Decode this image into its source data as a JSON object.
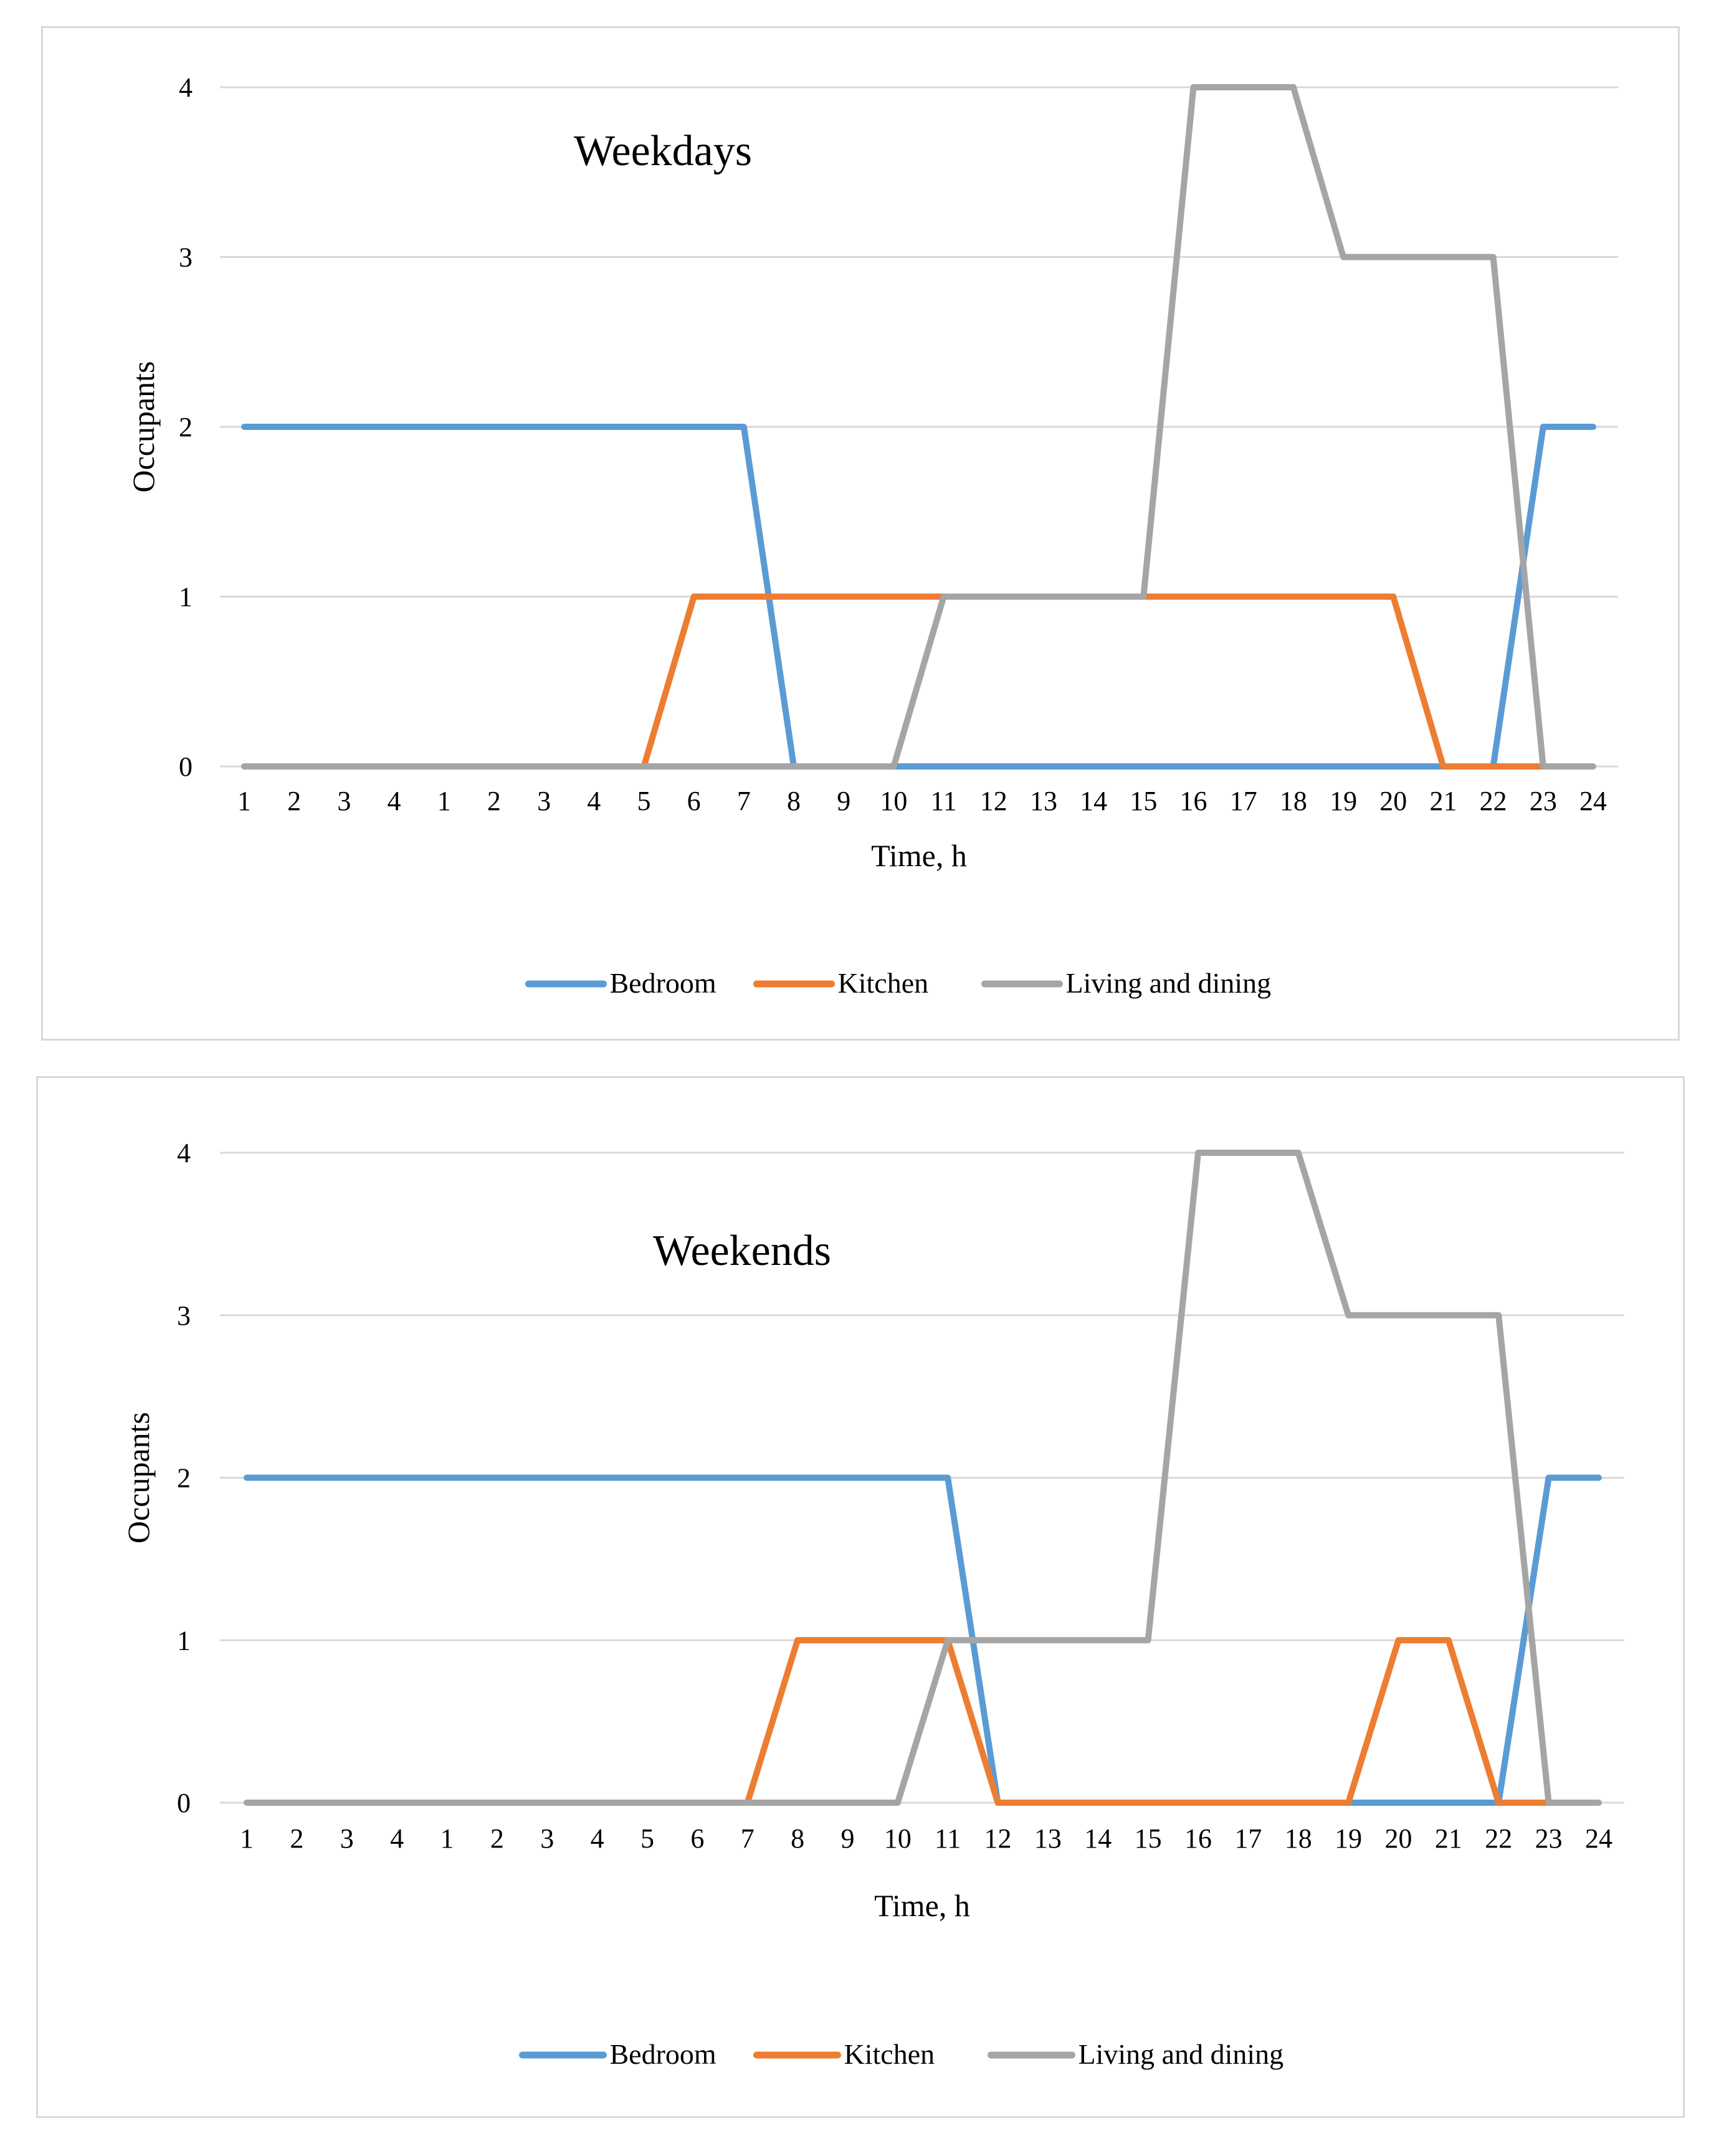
{
  "chart_data": [
    {
      "type": "line",
      "title": "Weekdays",
      "xlabel": "Time, h",
      "ylabel": "Occupants",
      "categories": [
        "1",
        "2",
        "3",
        "4",
        "1",
        "2",
        "3",
        "4",
        "5",
        "6",
        "7",
        "8",
        "9",
        "10",
        "11",
        "12",
        "13",
        "14",
        "15",
        "16",
        "17",
        "18",
        "19",
        "20",
        "21",
        "22",
        "23",
        "24"
      ],
      "ylim": [
        0,
        4
      ],
      "yticks": [
        0,
        1,
        2,
        3,
        4
      ],
      "grid": true,
      "legend": "bottom",
      "series": [
        {
          "name": "Bedroom",
          "color": "#5b9bd5",
          "values": [
            2,
            2,
            2,
            2,
            2,
            2,
            2,
            2,
            2,
            2,
            2,
            0,
            0,
            0,
            0,
            0,
            0,
            0,
            0,
            0,
            0,
            0,
            0,
            0,
            0,
            0,
            2,
            2
          ]
        },
        {
          "name": "Kitchen",
          "color": "#ed7d31",
          "values": [
            0,
            0,
            0,
            0,
            0,
            0,
            0,
            0,
            0,
            1,
            1,
            1,
            1,
            1,
            1,
            1,
            1,
            1,
            1,
            1,
            1,
            1,
            1,
            1,
            0,
            0,
            0,
            0
          ]
        },
        {
          "name": "Living and dining",
          "color": "#a5a5a5",
          "values": [
            0,
            0,
            0,
            0,
            0,
            0,
            0,
            0,
            0,
            0,
            0,
            0,
            0,
            0,
            1,
            1,
            1,
            1,
            1,
            4,
            4,
            4,
            3,
            3,
            3,
            3,
            0,
            0
          ]
        }
      ]
    },
    {
      "type": "line",
      "title": "Weekends",
      "xlabel": "Time, h",
      "ylabel": "Occupants",
      "categories": [
        "1",
        "2",
        "3",
        "4",
        "1",
        "2",
        "3",
        "4",
        "5",
        "6",
        "7",
        "8",
        "9",
        "10",
        "11",
        "12",
        "13",
        "14",
        "15",
        "16",
        "17",
        "18",
        "19",
        "20",
        "21",
        "22",
        "23",
        "24"
      ],
      "ylim": [
        0,
        4
      ],
      "yticks": [
        0,
        1,
        2,
        3,
        4
      ],
      "grid": true,
      "legend": "bottom",
      "series": [
        {
          "name": "Bedroom",
          "color": "#5b9bd5",
          "values": [
            2,
            2,
            2,
            2,
            2,
            2,
            2,
            2,
            2,
            2,
            2,
            2,
            2,
            2,
            2,
            0,
            0,
            0,
            0,
            0,
            0,
            0,
            0,
            0,
            0,
            0,
            2,
            2
          ]
        },
        {
          "name": "Kitchen",
          "color": "#ed7d31",
          "values": [
            0,
            0,
            0,
            0,
            0,
            0,
            0,
            0,
            0,
            0,
            0,
            1,
            1,
            1,
            1,
            0,
            0,
            0,
            0,
            0,
            0,
            0,
            0,
            1,
            1,
            0,
            0,
            0
          ]
        },
        {
          "name": "Living and dining",
          "color": "#a5a5a5",
          "values": [
            0,
            0,
            0,
            0,
            0,
            0,
            0,
            0,
            0,
            0,
            0,
            0,
            0,
            0,
            1,
            1,
            1,
            1,
            1,
            4,
            4,
            4,
            3,
            3,
            3,
            3,
            0,
            0
          ]
        }
      ]
    }
  ]
}
